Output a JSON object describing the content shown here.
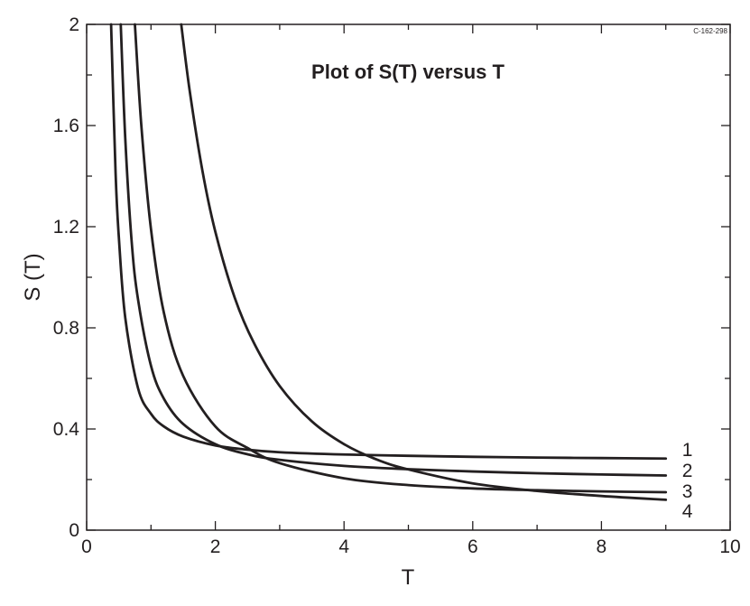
{
  "figure_id": "C-162-298",
  "chart_data": {
    "type": "line",
    "title": "Plot of S(T) versus T",
    "xlabel": "T",
    "ylabel": "S (T)",
    "xlim": [
      0,
      10
    ],
    "ylim": [
      0,
      2
    ],
    "x_ticks": [
      "0",
      "2",
      "4",
      "6",
      "8",
      "10"
    ],
    "y_ticks": [
      "0",
      "0.4",
      "0.8",
      "1.2",
      "1.6",
      "2"
    ],
    "grid": false,
    "line_color": "#231f20",
    "series": [
      {
        "name": "1",
        "x": [
          0.38,
          0.45,
          0.5,
          0.6,
          0.8,
          1.0,
          1.2,
          1.5,
          2.0,
          2.5,
          3,
          4,
          5,
          6,
          7,
          8,
          9
        ],
        "y": [
          2.0,
          1.41,
          1.16,
          0.84,
          0.56,
          0.46,
          0.41,
          0.37,
          0.335,
          0.318,
          0.308,
          0.299,
          0.294,
          0.29,
          0.287,
          0.285,
          0.283
        ]
      },
      {
        "name": "2",
        "x": [
          0.53,
          0.6,
          0.7,
          0.8,
          1.0,
          1.2,
          1.5,
          2.0,
          2.5,
          3,
          4,
          5,
          6,
          7,
          8,
          9
        ],
        "y": [
          2.0,
          1.55,
          1.14,
          0.91,
          0.65,
          0.52,
          0.42,
          0.34,
          0.3,
          0.278,
          0.254,
          0.241,
          0.232,
          0.225,
          0.22,
          0.216
        ]
      },
      {
        "name": "3",
        "x": [
          0.75,
          0.85,
          1.0,
          1.2,
          1.5,
          2.0,
          2.5,
          3,
          4,
          5,
          6,
          7,
          8,
          9
        ],
        "y": [
          2.0,
          1.6,
          1.19,
          0.86,
          0.61,
          0.41,
          0.325,
          0.265,
          0.205,
          0.178,
          0.165,
          0.158,
          0.153,
          0.15
        ]
      },
      {
        "name": "4",
        "x": [
          1.47,
          1.6,
          1.8,
          2.0,
          2.3,
          2.6,
          3.0,
          3.5,
          4.0,
          4.5,
          5.0,
          6.0,
          7.0,
          8.0,
          9.0
        ],
        "y": [
          2.0,
          1.74,
          1.42,
          1.18,
          0.92,
          0.74,
          0.57,
          0.43,
          0.34,
          0.28,
          0.24,
          0.185,
          0.155,
          0.135,
          0.12
        ]
      }
    ]
  }
}
